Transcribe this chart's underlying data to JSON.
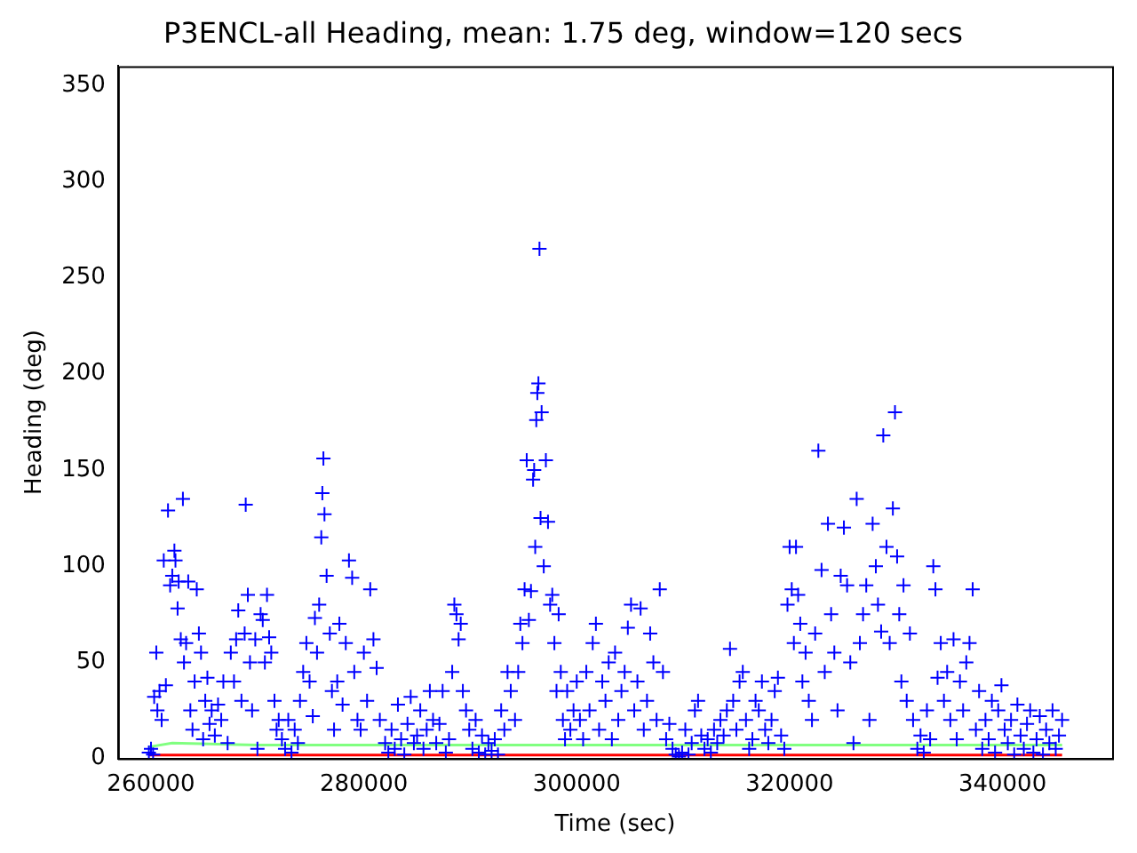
{
  "chart_data": {
    "type": "scatter",
    "title": "P3ENCL-all Heading, mean: 1.75 deg, window=120 secs",
    "xlabel": "Time (sec)",
    "ylabel": "Heading (deg)",
    "xlim": [
      256900,
      350300
    ],
    "xticks": [
      260000,
      280000,
      300000,
      320000,
      340000
    ],
    "ylim": [
      0,
      360
    ],
    "yticks": [
      0,
      50,
      100,
      150,
      200,
      250,
      300,
      350
    ],
    "grid": false,
    "legend": false,
    "marker": "cross",
    "series": [
      {
        "color": "#0000ff",
        "x": [
          259800,
          260000,
          260200,
          260300,
          260500,
          260600,
          260800,
          261000,
          261200,
          261400,
          261600,
          261800,
          262000,
          262200,
          262300,
          262500,
          262600,
          262800,
          263000,
          263100,
          263300,
          263500,
          263700,
          263900,
          264100,
          264300,
          264500,
          264700,
          264900,
          265100,
          265300,
          265500,
          265700,
          266000,
          266300,
          266600,
          266800,
          267200,
          267500,
          267800,
          268000,
          268200,
          268500,
          268800,
          268900,
          269100,
          269300,
          269500,
          269800,
          270000,
          270300,
          270500,
          270700,
          270900,
          271100,
          271300,
          271600,
          271800,
          272000,
          272300,
          272600,
          272900,
          273200,
          273500,
          273800,
          274000,
          274300,
          274600,
          274900,
          275200,
          275400,
          275600,
          275800,
          276000,
          276100,
          276200,
          276300,
          276500,
          276800,
          277000,
          277200,
          277500,
          277700,
          278000,
          278300,
          278600,
          278900,
          279100,
          279400,
          279700,
          280000,
          280300,
          280600,
          280900,
          281200,
          281500,
          282000,
          282300,
          282600,
          282900,
          283200,
          283500,
          283800,
          284100,
          284400,
          284700,
          285000,
          285300,
          285600,
          285900,
          286200,
          286500,
          286800,
          287100,
          287400,
          287700,
          288000,
          288300,
          288500,
          288700,
          288900,
          289100,
          289300,
          289600,
          289900,
          290200,
          290500,
          290800,
          291100,
          291400,
          291700,
          292000,
          292300,
          292600,
          292900,
          293200,
          293500,
          293800,
          294200,
          294500,
          294700,
          294900,
          295100,
          295300,
          295500,
          295700,
          295900,
          296000,
          296100,
          296200,
          296300,
          296400,
          296500,
          296600,
          296700,
          296900,
          297100,
          297300,
          297500,
          297700,
          297900,
          298100,
          298300,
          298500,
          298700,
          298900,
          299100,
          299400,
          299700,
          300000,
          300300,
          300600,
          300900,
          301200,
          301500,
          301800,
          302100,
          302400,
          302700,
          303000,
          303300,
          303600,
          303900,
          304200,
          304500,
          304800,
          305100,
          305400,
          305700,
          306000,
          306300,
          306600,
          306900,
          307200,
          307500,
          307800,
          308100,
          308400,
          308700,
          309000,
          309300,
          309600,
          309900,
          310200,
          310500,
          310800,
          311100,
          311400,
          311700,
          312000,
          312300,
          312600,
          312900,
          313200,
          313500,
          313800,
          314100,
          314400,
          314700,
          315000,
          315300,
          315600,
          315900,
          316200,
          316500,
          316800,
          317100,
          317400,
          317700,
          318000,
          318300,
          318600,
          318900,
          319200,
          319500,
          319800,
          320000,
          320200,
          320400,
          320600,
          320800,
          321000,
          321200,
          321500,
          321800,
          322100,
          322400,
          322700,
          323000,
          323300,
          323600,
          323900,
          324200,
          324500,
          324800,
          325100,
          325400,
          325700,
          326000,
          326300,
          326600,
          326900,
          327200,
          327500,
          327800,
          328100,
          328300,
          328600,
          328800,
          329100,
          329400,
          329700,
          329900,
          330100,
          330300,
          330500,
          330700,
          331000,
          331300,
          331600,
          332000,
          332300,
          332600,
          332900,
          333200,
          333500,
          333700,
          333900,
          334200,
          334500,
          334800,
          335100,
          335400,
          335700,
          336000,
          336300,
          336600,
          336900,
          337200,
          337500,
          337800,
          338100,
          338400,
          338700,
          339000,
          339300,
          339600,
          339900,
          340200,
          340500,
          340800,
          341100,
          341400,
          341700,
          342000,
          342300,
          342600,
          342900,
          343200,
          343500,
          343800,
          344100,
          344400,
          344700,
          345000,
          345300,
          345600
        ],
        "values": [
          3,
          5,
          2,
          32,
          55,
          25,
          35,
          20,
          103,
          38,
          129,
          90,
          95,
          108,
          103,
          78,
          92,
          62,
          135,
          50,
          60,
          92,
          25,
          15,
          40,
          88,
          65,
          55,
          10,
          30,
          42,
          18,
          25,
          12,
          28,
          20,
          40,
          8,
          55,
          40,
          62,
          77,
          30,
          65,
          132,
          85,
          50,
          25,
          62,
          5,
          75,
          72,
          50,
          85,
          63,
          55,
          30,
          15,
          20,
          10,
          5,
          20,
          3,
          15,
          8,
          30,
          45,
          60,
          40,
          22,
          73,
          55,
          80,
          115,
          138,
          156,
          127,
          95,
          65,
          35,
          15,
          40,
          70,
          28,
          60,
          103,
          94,
          45,
          20,
          15,
          55,
          30,
          88,
          62,
          47,
          20,
          8,
          3,
          15,
          5,
          28,
          10,
          2,
          18,
          32,
          8,
          12,
          25,
          5,
          15,
          35,
          20,
          8,
          18,
          35,
          3,
          10,
          45,
          80,
          75,
          62,
          70,
          35,
          25,
          15,
          5,
          20,
          3,
          12,
          2,
          8,
          4,
          10,
          2,
          25,
          15,
          45,
          35,
          20,
          45,
          70,
          60,
          88,
          155,
          72,
          87,
          145,
          150,
          110,
          176,
          190,
          195,
          265,
          125,
          180,
          100,
          155,
          123,
          80,
          85,
          60,
          35,
          75,
          45,
          20,
          10,
          35,
          15,
          25,
          40,
          20,
          10,
          45,
          25,
          60,
          70,
          15,
          40,
          30,
          50,
          10,
          55,
          20,
          35,
          45,
          68,
          80,
          25,
          40,
          78,
          15,
          30,
          65,
          50,
          20,
          88,
          45,
          10,
          18,
          5,
          2,
          1,
          3,
          15,
          2,
          8,
          25,
          30,
          12,
          5,
          10,
          3,
          15,
          8,
          20,
          12,
          25,
          57,
          30,
          15,
          40,
          45,
          20,
          5,
          10,
          30,
          25,
          40,
          15,
          8,
          20,
          35,
          42,
          12,
          5,
          80,
          110,
          88,
          60,
          110,
          85,
          70,
          40,
          55,
          30,
          20,
          65,
          160,
          98,
          45,
          122,
          75,
          55,
          25,
          95,
          120,
          90,
          50,
          8,
          135,
          60,
          75,
          90,
          20,
          122,
          100,
          80,
          66,
          168,
          110,
          60,
          130,
          180,
          105,
          75,
          40,
          90,
          30,
          65,
          20,
          5,
          12,
          3,
          25,
          10,
          100,
          88,
          42,
          60,
          30,
          45,
          20,
          62,
          10,
          40,
          25,
          50,
          60,
          88,
          15,
          35,
          5,
          20,
          10,
          30,
          3,
          25,
          38,
          15,
          8,
          20,
          2,
          28,
          12,
          5,
          18,
          25,
          3,
          10,
          22,
          2,
          15,
          8,
          25,
          5,
          12,
          20
        ]
      },
      {
        "type": "line",
        "marker": "none",
        "color": "#80ff80",
        "x": [
          259800,
          262000,
          270000,
          290000,
          310000,
          330000,
          345600
        ],
        "values": [
          6,
          8,
          7,
          7,
          7,
          7,
          7
        ]
      },
      {
        "type": "line",
        "marker": "none",
        "color": "#ff0000",
        "x": [
          259800,
          345600
        ],
        "values": [
          1.75,
          1.75
        ]
      }
    ]
  }
}
